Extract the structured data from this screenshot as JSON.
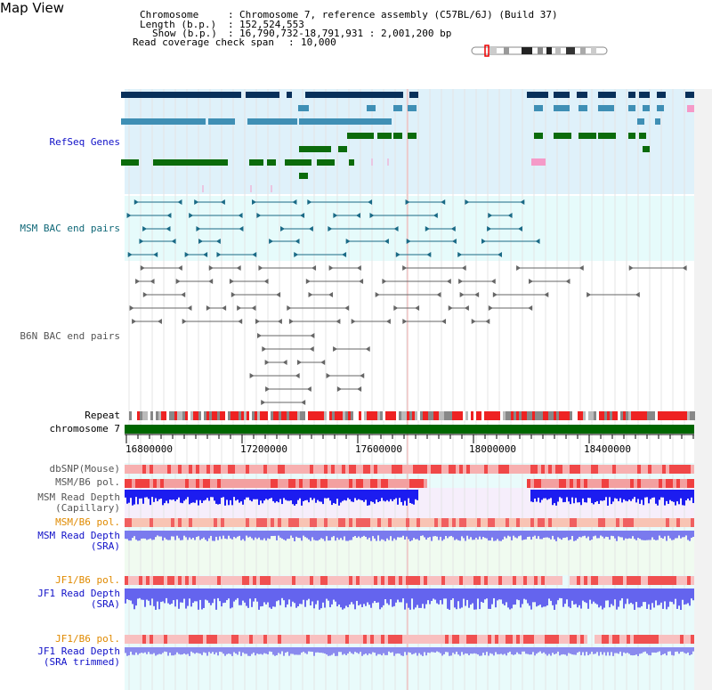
{
  "title": "Map View",
  "info": {
    "chromosome_key": "Chromosome",
    "chromosome_val": "Chromosome 7, reference assembly (C57BL/6J) (Build 37)",
    "length_key": "Length (b.p.)",
    "length_val": "152,524,553",
    "show_key": "Show (b.p.)",
    "show_val": "16,790,732-18,791,931 : 2,001,200 bp",
    "span_key": "Read coverage check span",
    "span_val": "10,000"
  },
  "tracks": {
    "refseq": "RefSeq Genes",
    "msm_bac": "MSM BAC end pairs",
    "b6n_bac": "B6N BAC end pairs",
    "repeat": "Repeat",
    "chromosome": "chromosome 7",
    "dbsnp": "dbSNP(Mouse)",
    "msm_b6_pol": "MSM/B6 pol.",
    "msm_depth_cap_1": "MSM Read Depth",
    "msm_depth_cap_2": "(Capillary)",
    "msm_b6_pol2": "MSM/B6 pol.",
    "msm_depth_sra_1": "MSM Read Depth",
    "msm_depth_sra_2": "(SRA)",
    "jf1_b6_pol": "JF1/B6 pol.",
    "jf1_depth_sra_1": "JF1 Read Depth",
    "jf1_depth_sra_2": "(SRA)",
    "jf1_b6_pol2": "JF1/B6 pol.",
    "jf1_depth_trim_1": "JF1 Read Depth",
    "jf1_depth_trim_2": "(SRA trimmed)"
  },
  "axis_ticks": [
    "16800000",
    "17200000",
    "17600000",
    "18000000",
    "18400000"
  ],
  "colors": {
    "refseq_bg": "#dff1fa",
    "msm_bac_bg": "#e6fbfb",
    "gene_dark": "#08305a",
    "gene_mid": "#3f8fb5",
    "gene_green": "#0b6b0b",
    "chrom_green": "#006600",
    "snp_red": "#f01818",
    "depth_blue": "#1414ee",
    "depth_light": "#7474ee"
  }
}
